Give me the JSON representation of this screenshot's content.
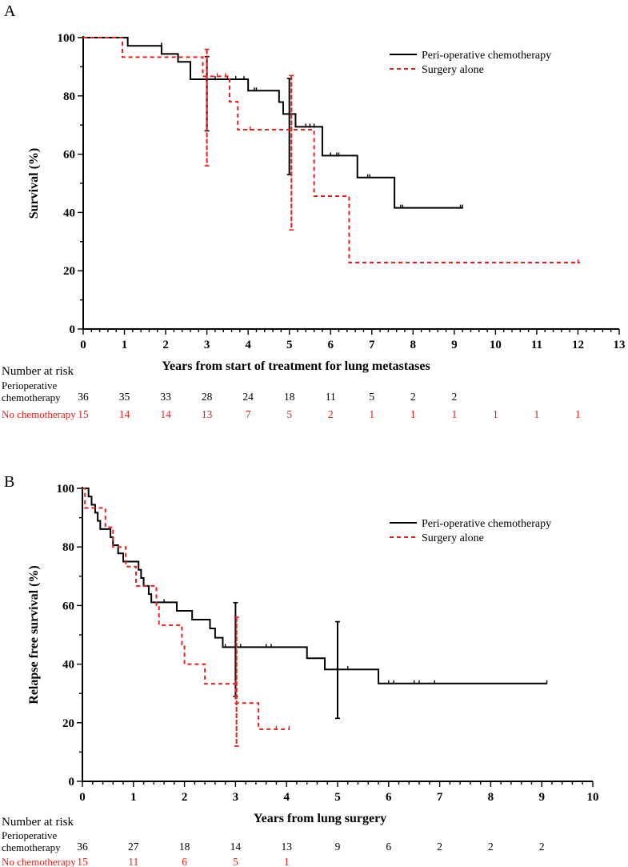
{
  "chart_data": [
    {
      "panel": "A",
      "type": "line",
      "xlabel": "Years from start of treatment for lung metastases",
      "ylabel": "Survival (%)",
      "xlim": [
        0,
        13
      ],
      "ylim": [
        0,
        100
      ],
      "xticks": [
        0,
        1,
        2,
        3,
        4,
        5,
        6,
        7,
        8,
        9,
        10,
        11,
        12,
        13
      ],
      "yticks": [
        0,
        20,
        40,
        60,
        80,
        100
      ],
      "legend": {
        "position": "top-right",
        "entries": [
          "Peri-operative chemotherapy",
          "Surgery alone"
        ]
      },
      "series": [
        {
          "name": "Peri-operative chemotherapy",
          "color": "#000000",
          "dash": "solid",
          "steps": [
            [
              0,
              100
            ],
            [
              1.08,
              97.2
            ],
            [
              1.9,
              94.4
            ],
            [
              2.3,
              91.7
            ],
            [
              2.6,
              85.7
            ],
            [
              4.0,
              81.8
            ],
            [
              4.75,
              77.9
            ],
            [
              4.85,
              73.8
            ],
            [
              5.15,
              69.4
            ],
            [
              5.8,
              59.5
            ],
            [
              6.65,
              52.0
            ],
            [
              7.55,
              41.6
            ],
            [
              9.2,
              41.6
            ]
          ],
          "censored": [
            [
              1.9,
              97.2
            ],
            [
              3.2,
              85.7
            ],
            [
              3.5,
              85.7
            ],
            [
              3.7,
              85.7
            ],
            [
              3.9,
              85.7
            ],
            [
              4.15,
              81.8
            ],
            [
              4.2,
              81.8
            ],
            [
              5.4,
              69.4
            ],
            [
              5.5,
              69.4
            ],
            [
              5.6,
              69.4
            ],
            [
              6.0,
              59.5
            ],
            [
              6.15,
              59.5
            ],
            [
              6.2,
              59.5
            ],
            [
              6.9,
              52.0
            ],
            [
              6.95,
              52.0
            ],
            [
              7.7,
              41.6
            ],
            [
              7.75,
              41.6
            ],
            [
              9.15,
              41.6
            ],
            [
              9.2,
              41.6
            ]
          ],
          "error_bars": [
            {
              "x": 3.0,
              "y": 85.7,
              "low": 68.0,
              "high": 93.5
            },
            {
              "x": 5.0,
              "y": 69.4,
              "low": 53.0,
              "high": 86.0
            }
          ]
        },
        {
          "name": "Surgery alone",
          "color": "#e8201a",
          "dash": "dashed",
          "steps": [
            [
              0,
              100
            ],
            [
              0.95,
              93.3
            ],
            [
              2.0,
              93.3
            ],
            [
              2.9,
              86.7
            ],
            [
              3.55,
              78.0
            ],
            [
              3.75,
              68.4
            ],
            [
              5.6,
              45.6
            ],
            [
              6.45,
              22.8
            ],
            [
              12.05,
              22.8
            ]
          ],
          "censored": [
            [
              3.25,
              86.7
            ],
            [
              3.45,
              86.7
            ],
            [
              4.05,
              68.4
            ],
            [
              5.05,
              68.4
            ],
            [
              12.0,
              22.8
            ]
          ],
          "error_bars": [
            {
              "x": 3.0,
              "y": 86.7,
              "low": 56.0,
              "high": 96.0
            },
            {
              "x": 5.05,
              "y": 68.4,
              "low": 34.0,
              "high": 87.0
            }
          ]
        }
      ],
      "number_at_risk": {
        "title": "Number at risk",
        "rows": [
          {
            "label_line1": "Perioperative",
            "label_line2": "chemotherapy",
            "color": "#000000",
            "values": [
              "36",
              "35",
              "33",
              "28",
              "24",
              "18",
              "11",
              "5",
              "2",
              "2"
            ]
          },
          {
            "label_line1": "No chemotherapy",
            "label_line2": "",
            "color": "#e8201a",
            "values": [
              "15",
              "14",
              "14",
              "13",
              "7",
              "5",
              "2",
              "1",
              "1",
              "1",
              "1",
              "1",
              "1"
            ]
          }
        ]
      }
    },
    {
      "panel": "B",
      "type": "line",
      "xlabel": "Years from lung surgery",
      "ylabel": "Relapse free survival (%)",
      "xlim": [
        0,
        10
      ],
      "ylim": [
        0,
        100
      ],
      "xticks": [
        0,
        1,
        2,
        3,
        4,
        5,
        6,
        7,
        8,
        9,
        10
      ],
      "yticks": [
        0,
        20,
        40,
        60,
        80,
        100
      ],
      "legend": {
        "position": "top-right",
        "entries": [
          "Peri-operative chemotherapy",
          "Surgery alone"
        ]
      },
      "series": [
        {
          "name": "Peri-operative chemotherapy",
          "color": "#000000",
          "dash": "solid",
          "steps": [
            [
              0,
              100
            ],
            [
              0.12,
              97.2
            ],
            [
              0.18,
              94.4
            ],
            [
              0.25,
              91.7
            ],
            [
              0.3,
              88.9
            ],
            [
              0.35,
              86.1
            ],
            [
              0.55,
              83.3
            ],
            [
              0.6,
              80.6
            ],
            [
              0.7,
              77.8
            ],
            [
              0.8,
              75.0
            ],
            [
              1.1,
              72.2
            ],
            [
              1.15,
              69.4
            ],
            [
              1.2,
              66.7
            ],
            [
              1.3,
              63.9
            ],
            [
              1.35,
              61.1
            ],
            [
              1.85,
              58.2
            ],
            [
              2.15,
              55.2
            ],
            [
              2.5,
              52.2
            ],
            [
              2.6,
              49.0
            ],
            [
              2.75,
              45.8
            ],
            [
              4.4,
              42.0
            ],
            [
              4.75,
              38.2
            ],
            [
              5.8,
              33.4
            ],
            [
              9.1,
              33.4
            ]
          ],
          "censored": [
            [
              1.6,
              61.1
            ],
            [
              2.8,
              45.8
            ],
            [
              3.1,
              45.8
            ],
            [
              3.6,
              45.8
            ],
            [
              3.7,
              45.8
            ],
            [
              5.2,
              38.2
            ],
            [
              6.0,
              33.4
            ],
            [
              6.1,
              33.4
            ],
            [
              6.5,
              33.4
            ],
            [
              6.6,
              33.4
            ],
            [
              6.9,
              33.4
            ],
            [
              9.1,
              33.4
            ]
          ],
          "error_bars": [
            {
              "x": 3.0,
              "y": 45.8,
              "low": 29.0,
              "high": 61.0
            },
            {
              "x": 5.0,
              "y": 38.2,
              "low": 21.5,
              "high": 54.5
            }
          ]
        },
        {
          "name": "Surgery alone",
          "color": "#e8201a",
          "dash": "dashed",
          "steps": [
            [
              0,
              100
            ],
            [
              0.05,
              93.3
            ],
            [
              0.45,
              86.7
            ],
            [
              0.6,
              80.0
            ],
            [
              0.85,
              73.3
            ],
            [
              1.05,
              66.7
            ],
            [
              1.45,
              60.0
            ],
            [
              1.5,
              53.3
            ],
            [
              1.95,
              46.7
            ],
            [
              2.0,
              40.0
            ],
            [
              2.4,
              33.3
            ],
            [
              3.0,
              26.7
            ],
            [
              3.45,
              17.8
            ],
            [
              3.65,
              17.8
            ],
            [
              4.05,
              17.8
            ]
          ],
          "censored": [
            [
              3.0,
              33.3
            ],
            [
              3.8,
              17.8
            ],
            [
              4.05,
              17.8
            ]
          ],
          "error_bars": [
            {
              "x": 3.02,
              "y": 26.7,
              "low": 12.0,
              "high": 56.0
            }
          ]
        }
      ],
      "number_at_risk": {
        "title": "Number at risk",
        "rows": [
          {
            "label_line1": "Perioperative",
            "label_line2": "chemotherapy",
            "color": "#000000",
            "values": [
              "36",
              "27",
              "18",
              "14",
              "13",
              "9",
              "6",
              "2",
              "2",
              "2"
            ]
          },
          {
            "label_line1": "No chemotherapy",
            "label_line2": "",
            "color": "#e8201a",
            "values": [
              "15",
              "11",
              "6",
              "5",
              "1"
            ]
          }
        ]
      }
    }
  ]
}
